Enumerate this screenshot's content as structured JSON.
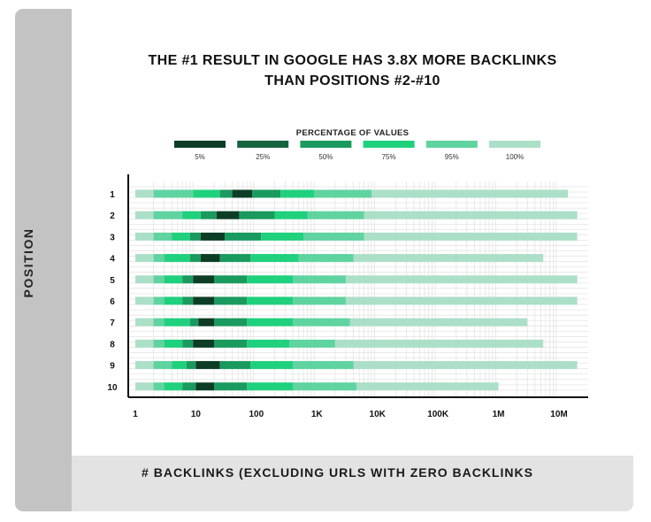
{
  "title_lines": [
    "THE #1 RESULT IN GOOGLE HAS 3.8X MORE BACKLINKS",
    "THAN POSITIONS #2-#10"
  ],
  "chart_data": {
    "type": "bar",
    "subtype": "stacked-percentile-range",
    "title": "THE #1 RESULT IN GOOGLE HAS 3.8X MORE BACKLINKS THAN POSITIONS #2-#10",
    "xlabel": "# BACKLINKS (EXCLUDING URLS WITH ZERO BACKLINKS",
    "ylabel": "POSITION",
    "x_scale": "log",
    "xlim": [
      1,
      10000000
    ],
    "x_ticks": [
      {
        "value": 1,
        "label": "1"
      },
      {
        "value": 10,
        "label": "10"
      },
      {
        "value": 100,
        "label": "100"
      },
      {
        "value": 1000,
        "label": "1K"
      },
      {
        "value": 10000,
        "label": "10K"
      },
      {
        "value": 100000,
        "label": "100K"
      },
      {
        "value": 1000000,
        "label": "1M"
      },
      {
        "value": 10000000,
        "label": "10M"
      }
    ],
    "legend_title": "PERCENTAGE OF VALUES",
    "legend_position": "top-center",
    "bands": [
      {
        "name": "5%",
        "color": "#0d3d26"
      },
      {
        "name": "25%",
        "color": "#16633f"
      },
      {
        "name": "50%",
        "color": "#1a9a5e"
      },
      {
        "name": "75%",
        "color": "#1fd07c"
      },
      {
        "name": "95%",
        "color": "#5fd3a0"
      },
      {
        "name": "100%",
        "color": "#acdfc7"
      }
    ],
    "categories": [
      "1",
      "2",
      "3",
      "4",
      "5",
      "6",
      "7",
      "8",
      "9",
      "10"
    ],
    "rows": [
      {
        "position": "1",
        "segments": [
          [
            1,
            2
          ],
          [
            2,
            9
          ],
          [
            9,
            25
          ],
          [
            25,
            40
          ],
          [
            40,
            85
          ],
          [
            85,
            250
          ],
          [
            250,
            900
          ],
          [
            900,
            8000
          ],
          [
            8000,
            14000000
          ]
        ]
      },
      {
        "position": "2",
        "segments": [
          [
            1,
            2
          ],
          [
            2,
            6
          ],
          [
            6,
            12
          ],
          [
            12,
            22
          ],
          [
            22,
            52
          ],
          [
            52,
            200
          ],
          [
            200,
            700
          ],
          [
            700,
            6000
          ],
          [
            6000,
            20000000
          ]
        ]
      },
      {
        "position": "3",
        "segments": [
          [
            1,
            2
          ],
          [
            2,
            4
          ],
          [
            4,
            8
          ],
          [
            8,
            12
          ],
          [
            12,
            30
          ],
          [
            30,
            120
          ],
          [
            120,
            600
          ],
          [
            600,
            6000
          ],
          [
            6000,
            20000000
          ]
        ]
      },
      {
        "position": "4",
        "segments": [
          [
            1,
            2
          ],
          [
            2,
            3
          ],
          [
            3,
            8
          ],
          [
            8,
            12
          ],
          [
            12,
            25
          ],
          [
            25,
            80
          ],
          [
            80,
            500
          ],
          [
            500,
            4000
          ],
          [
            4000,
            5500000
          ]
        ]
      },
      {
        "position": "5",
        "segments": [
          [
            1,
            2
          ],
          [
            2,
            3
          ],
          [
            3,
            6
          ],
          [
            6,
            9
          ],
          [
            9,
            20
          ],
          [
            20,
            70
          ],
          [
            70,
            400
          ],
          [
            400,
            3000
          ],
          [
            3000,
            20000000
          ]
        ]
      },
      {
        "position": "6",
        "segments": [
          [
            1,
            2
          ],
          [
            2,
            3
          ],
          [
            3,
            6
          ],
          [
            6,
            9
          ],
          [
            9,
            20
          ],
          [
            20,
            70
          ],
          [
            70,
            400
          ],
          [
            400,
            3000
          ],
          [
            3000,
            20000000
          ]
        ]
      },
      {
        "position": "7",
        "segments": [
          [
            1,
            2
          ],
          [
            2,
            3
          ],
          [
            3,
            8
          ],
          [
            8,
            11
          ],
          [
            11,
            20
          ],
          [
            20,
            70
          ],
          [
            70,
            400
          ],
          [
            400,
            3500
          ],
          [
            3500,
            3000000
          ]
        ]
      },
      {
        "position": "8",
        "segments": [
          [
            1,
            2
          ],
          [
            2,
            3
          ],
          [
            3,
            6
          ],
          [
            6,
            9
          ],
          [
            9,
            20
          ],
          [
            20,
            70
          ],
          [
            70,
            350
          ],
          [
            350,
            2000
          ],
          [
            2000,
            5500000
          ]
        ]
      },
      {
        "position": "9",
        "segments": [
          [
            1,
            2
          ],
          [
            2,
            4
          ],
          [
            4,
            7
          ],
          [
            7,
            10
          ],
          [
            10,
            25
          ],
          [
            25,
            80
          ],
          [
            80,
            400
          ],
          [
            400,
            4000
          ],
          [
            4000,
            20000000
          ]
        ]
      },
      {
        "position": "10",
        "segments": [
          [
            1,
            2
          ],
          [
            2,
            3
          ],
          [
            3,
            6
          ],
          [
            6,
            10
          ],
          [
            10,
            20
          ],
          [
            20,
            70
          ],
          [
            70,
            400
          ],
          [
            400,
            4500
          ],
          [
            4500,
            1000000
          ]
        ]
      }
    ],
    "segment_bands": [
      "100%",
      "95%",
      "75%",
      "50%",
      "5%",
      "50%",
      "75%",
      "95%",
      "100%"
    ],
    "grid": true
  }
}
